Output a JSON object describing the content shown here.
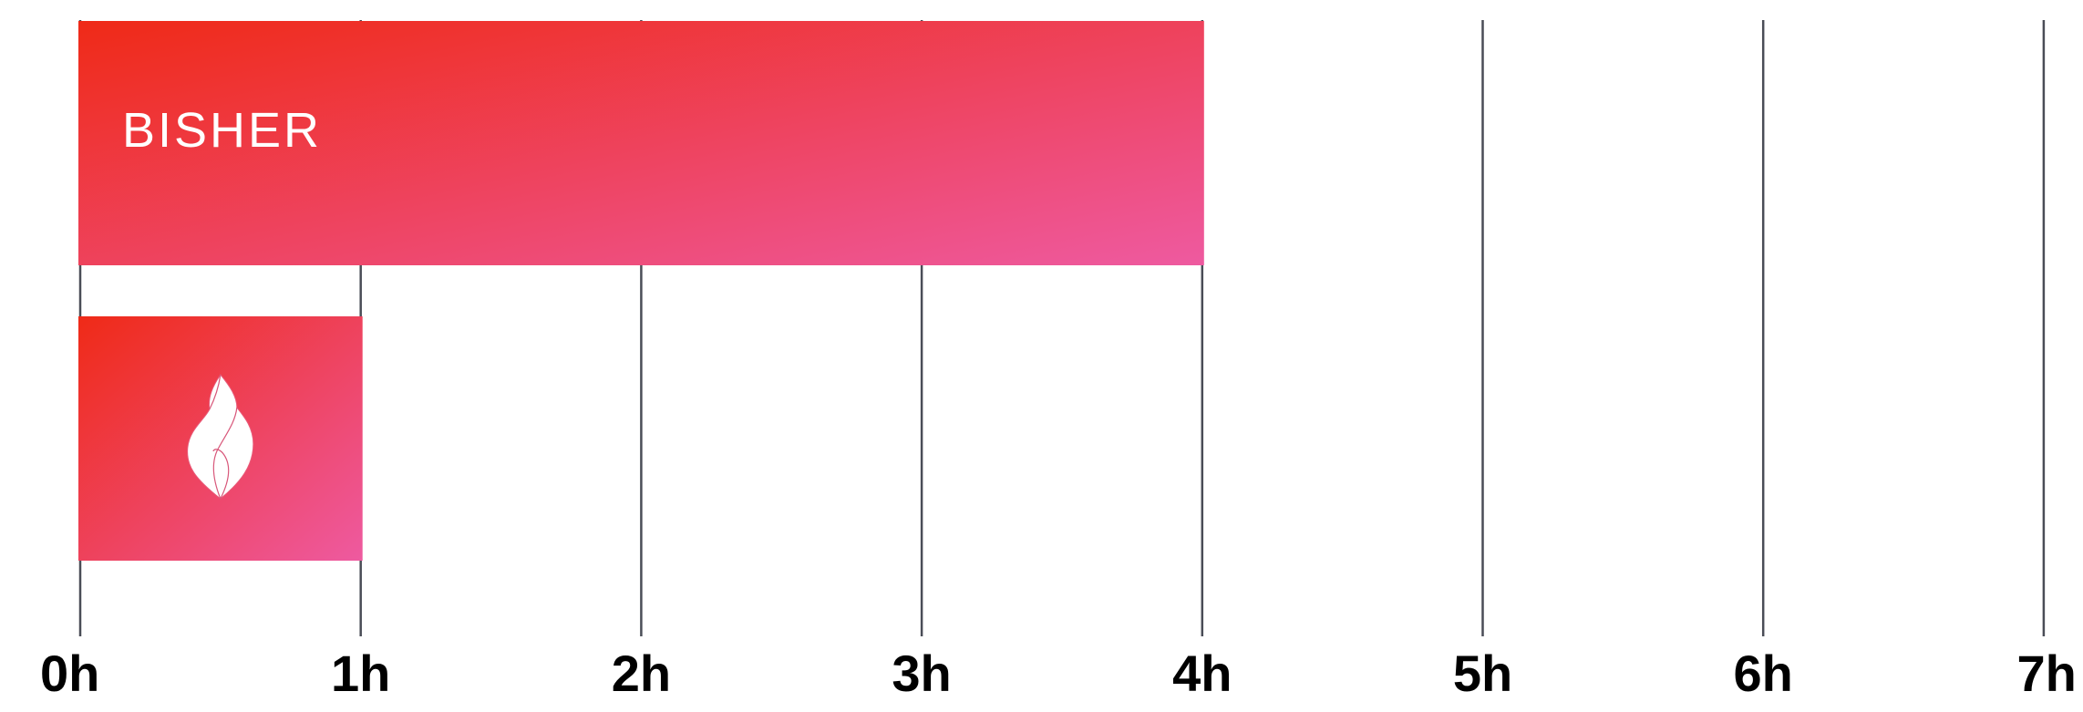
{
  "chart_data": {
    "type": "bar",
    "orientation": "horizontal",
    "x_unit": "h",
    "xlim": [
      0,
      7
    ],
    "x_ticks": [
      {
        "value": 0,
        "label": "0h"
      },
      {
        "value": 1,
        "label": "1h"
      },
      {
        "value": 2,
        "label": "2h"
      },
      {
        "value": 3,
        "label": "3h"
      },
      {
        "value": 4,
        "label": "4h"
      },
      {
        "value": 5,
        "label": "5h"
      },
      {
        "value": 6,
        "label": "6h"
      },
      {
        "value": 7,
        "label": "7h"
      }
    ],
    "grid": true,
    "bars": [
      {
        "label": "BISHER",
        "value": 4,
        "icon": null
      },
      {
        "label": "",
        "value": 1,
        "icon": "flame-icon"
      }
    ]
  },
  "colors": {
    "gradient_start": "#ef2a17",
    "gradient_end": "#ee5aa0",
    "grid": "#4a4d57",
    "tick_text": "#000000",
    "bar_text": "#ffffff"
  }
}
